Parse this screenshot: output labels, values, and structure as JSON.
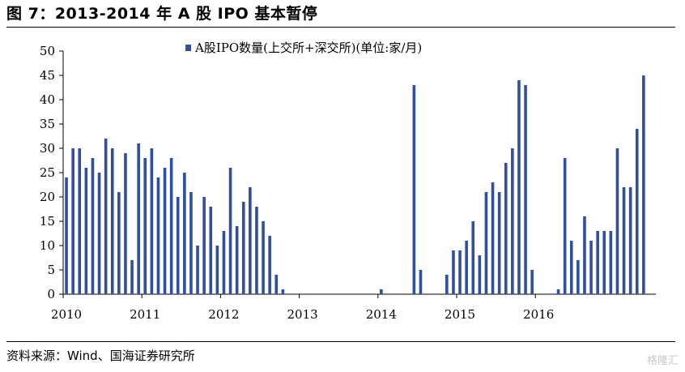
{
  "figure": {
    "title": "图 7：2013-2014 年 A 股 IPO 基本暂停",
    "source": "资料来源：Wind、国海证券研究所",
    "watermark": "格隆汇"
  },
  "colors": {
    "bar": "#2f4fa0",
    "axis": "#000000"
  },
  "chart_data": {
    "type": "bar",
    "title": "",
    "xlabel": "",
    "ylabel": "",
    "ylim": [
      0,
      50
    ],
    "yticks": [
      0,
      5,
      10,
      15,
      20,
      25,
      30,
      35,
      40,
      45,
      50
    ],
    "grid": false,
    "legend": {
      "position": "top-center",
      "entries": [
        "A股IPO数量(上交所+深交所)(单位:家/月)"
      ]
    },
    "year_labels": [
      "2010",
      "2011",
      "2012",
      "2013",
      "2014",
      "2015",
      "2016"
    ],
    "series": [
      {
        "name": "A股IPO数量(上交所+深交所)(单位:家/月)",
        "values": [
          24,
          30,
          30,
          26,
          28,
          25,
          32,
          30,
          21,
          29,
          7,
          31,
          28,
          30,
          24,
          26,
          28,
          20,
          25,
          21,
          10,
          20,
          18,
          10,
          13,
          26,
          14,
          19,
          22,
          18,
          15,
          12,
          4,
          1,
          0,
          0,
          0,
          0,
          0,
          0,
          0,
          0,
          0,
          0,
          0,
          0,
          0,
          0,
          1,
          0,
          0,
          0,
          0,
          43,
          5,
          0,
          0,
          0,
          4,
          9,
          9,
          11,
          15,
          8,
          21,
          23,
          21,
          27,
          30,
          44,
          43,
          5,
          0,
          0,
          0,
          1,
          28,
          11,
          7,
          16,
          11,
          13,
          13,
          13,
          30,
          22,
          22,
          34,
          45
        ]
      }
    ]
  }
}
